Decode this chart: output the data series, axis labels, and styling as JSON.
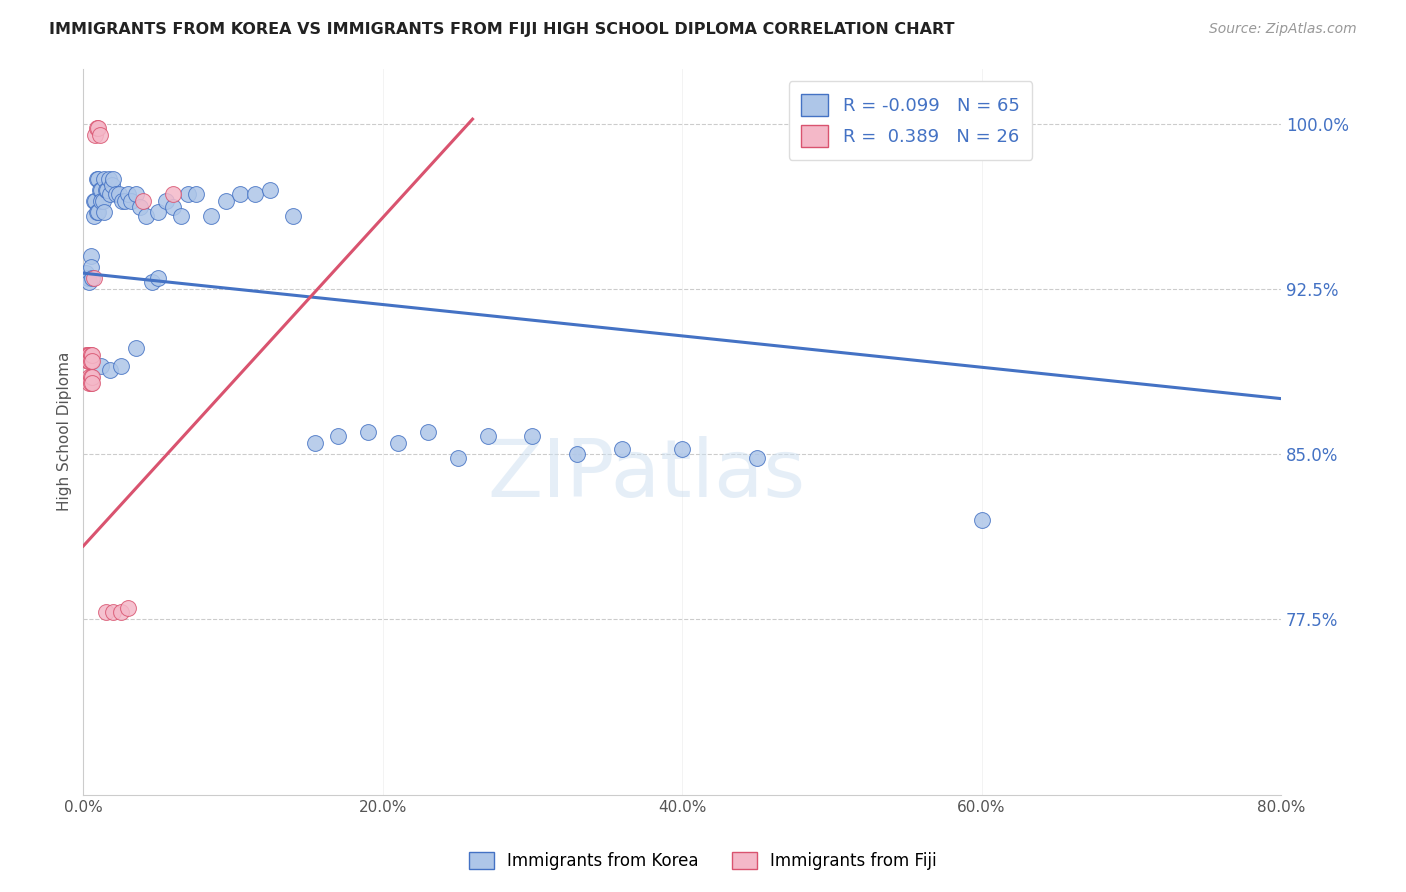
{
  "title": "IMMIGRANTS FROM KOREA VS IMMIGRANTS FROM FIJI HIGH SCHOOL DIPLOMA CORRELATION CHART",
  "source": "Source: ZipAtlas.com",
  "ylabel": "High School Diploma",
  "ytick_labels": [
    "100.0%",
    "92.5%",
    "85.0%",
    "77.5%"
  ],
  "ytick_values": [
    1.0,
    0.925,
    0.85,
    0.775
  ],
  "xtick_labels": [
    "0.0%",
    "20.0%",
    "40.0%",
    "60.0%",
    "80.0%"
  ],
  "xtick_values": [
    0.0,
    0.2,
    0.4,
    0.6,
    0.8
  ],
  "xmin": 0.0,
  "xmax": 0.8,
  "ymin": 0.695,
  "ymax": 1.025,
  "korea_R": -0.099,
  "korea_N": 65,
  "fiji_R": 0.389,
  "fiji_N": 26,
  "korea_color": "#aec6e8",
  "fiji_color": "#f4b8c8",
  "korea_line_color": "#4472c4",
  "fiji_line_color": "#d9536f",
  "legend_label_korea": "Immigrants from Korea",
  "legend_label_fiji": "Immigrants from Fiji",
  "watermark": "ZIPatlas",
  "korea_trend_x0": 0.0,
  "korea_trend_y0": 0.932,
  "korea_trend_x1": 0.8,
  "korea_trend_y1": 0.875,
  "fiji_trend_x0": 0.0,
  "fiji_trend_y0": 0.808,
  "fiji_trend_x1": 0.26,
  "fiji_trend_y1": 1.002,
  "korea_x": [
    0.002,
    0.003,
    0.004,
    0.005,
    0.005,
    0.006,
    0.007,
    0.007,
    0.008,
    0.009,
    0.009,
    0.01,
    0.01,
    0.011,
    0.012,
    0.012,
    0.013,
    0.014,
    0.014,
    0.015,
    0.016,
    0.017,
    0.018,
    0.019,
    0.02,
    0.022,
    0.024,
    0.026,
    0.028,
    0.03,
    0.032,
    0.035,
    0.038,
    0.042,
    0.046,
    0.05,
    0.055,
    0.06,
    0.065,
    0.07,
    0.075,
    0.085,
    0.095,
    0.105,
    0.115,
    0.125,
    0.14,
    0.155,
    0.17,
    0.19,
    0.21,
    0.23,
    0.25,
    0.27,
    0.3,
    0.33,
    0.36,
    0.4,
    0.45,
    0.6,
    0.012,
    0.018,
    0.025,
    0.035,
    0.05
  ],
  "korea_y": [
    0.932,
    0.93,
    0.928,
    0.94,
    0.935,
    0.93,
    0.965,
    0.958,
    0.965,
    0.96,
    0.975,
    0.96,
    0.975,
    0.97,
    0.97,
    0.965,
    0.965,
    0.975,
    0.96,
    0.97,
    0.97,
    0.975,
    0.968,
    0.972,
    0.975,
    0.968,
    0.968,
    0.965,
    0.965,
    0.968,
    0.965,
    0.968,
    0.962,
    0.958,
    0.928,
    0.96,
    0.965,
    0.962,
    0.958,
    0.968,
    0.968,
    0.958,
    0.965,
    0.968,
    0.968,
    0.97,
    0.958,
    0.855,
    0.858,
    0.86,
    0.855,
    0.86,
    0.848,
    0.858,
    0.858,
    0.85,
    0.852,
    0.852,
    0.848,
    0.82,
    0.89,
    0.888,
    0.89,
    0.898,
    0.93
  ],
  "fiji_x": [
    0.002,
    0.003,
    0.003,
    0.004,
    0.004,
    0.004,
    0.004,
    0.005,
    0.005,
    0.005,
    0.005,
    0.006,
    0.006,
    0.006,
    0.006,
    0.007,
    0.008,
    0.009,
    0.01,
    0.011,
    0.015,
    0.02,
    0.025,
    0.03,
    0.04,
    0.06
  ],
  "fiji_y": [
    0.895,
    0.895,
    0.892,
    0.895,
    0.892,
    0.885,
    0.882,
    0.895,
    0.892,
    0.885,
    0.882,
    0.895,
    0.892,
    0.885,
    0.882,
    0.93,
    0.995,
    0.998,
    0.998,
    0.995,
    0.778,
    0.778,
    0.778,
    0.78,
    0.965,
    0.968
  ]
}
